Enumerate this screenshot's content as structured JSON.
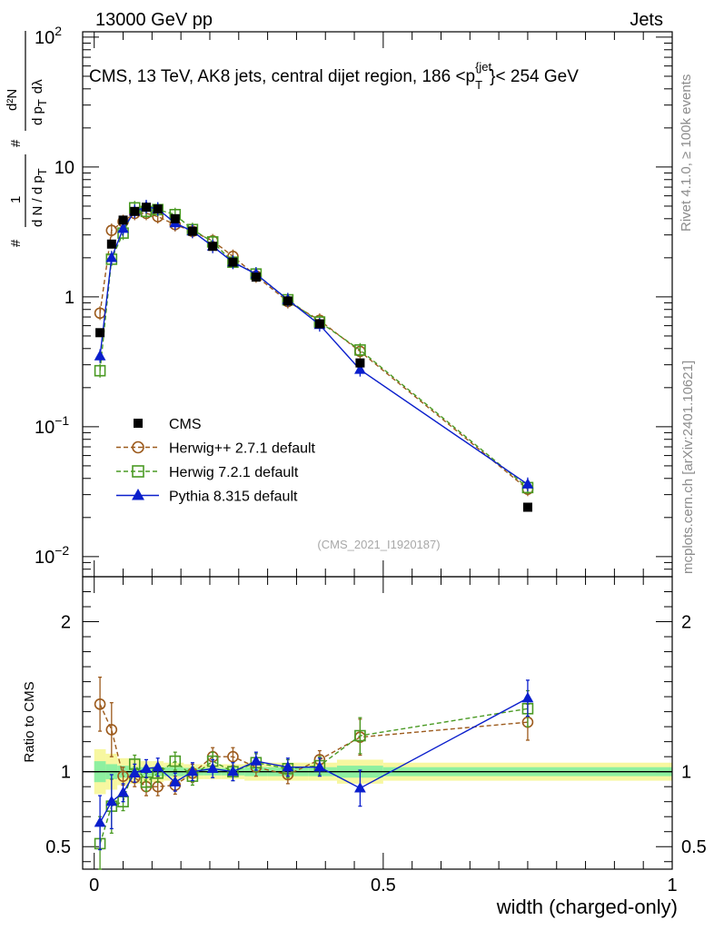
{
  "header": {
    "left": "13000 GeV pp",
    "right": "Jets",
    "side_rivet": "Rivet 4.1.0, ≥ 100k events",
    "side_mcplots": "mcplots.cern.ch [arXiv:2401.10621]",
    "watermark": "(CMS_2021_I1920187)"
  },
  "chart_data": [
    {
      "type": "scatter",
      "panel": "main",
      "title": "CMS, 13 TeV, AK8 jets, central dijet region, 186 <p_T^{jet}< 254 GeV",
      "title_parts": {
        "prefix": "CMS, 13 TeV, AK8 jets, central dijet region, 186 <p",
        "sub": "T",
        "sup": "{jet",
        "suffix": "}< 254 GeV"
      },
      "ylabel_parts": {
        "hash1": "#",
        "num1": "1",
        "den1": "d N / d p",
        "den1_sub": "T",
        "hash2": "#",
        "num2": "d²N",
        "den2": "d p",
        "den2_sub": "T",
        "den2_tail": "dλ"
      },
      "yscale": "log",
      "ylim": [
        0.007,
        110
      ],
      "xlim": [
        -0.02,
        1.0
      ],
      "y_ticks": [
        {
          "value": 100,
          "base": "10",
          "exp": "2"
        },
        {
          "value": 10,
          "base": "10",
          "exp": ""
        },
        {
          "value": 1,
          "base": "1",
          "exp": ""
        },
        {
          "value": 0.1,
          "base": "10",
          "exp": "−1"
        },
        {
          "value": 0.01,
          "base": "10",
          "exp": "−2"
        }
      ],
      "legend_position": "center-left",
      "x": [
        0.01,
        0.03,
        0.05,
        0.07,
        0.09,
        0.11,
        0.14,
        0.17,
        0.205,
        0.24,
        0.28,
        0.335,
        0.39,
        0.46,
        0.75
      ],
      "series": [
        {
          "name": "CMS",
          "marker": "square-filled",
          "color": "#000000",
          "values": [
            0.53,
            2.55,
            3.9,
            4.55,
            4.9,
            4.75,
            4.0,
            3.2,
            2.45,
            1.85,
            1.42,
            0.93,
            0.62,
            0.31,
            0.024
          ]
        },
        {
          "name": "Herwig++ 2.7.1 default",
          "marker": "circle-open",
          "color": "#9c5a1c",
          "values": [
            0.75,
            3.25,
            3.8,
            4.4,
            4.4,
            4.15,
            3.6,
            3.2,
            2.7,
            2.05,
            1.45,
            0.92,
            0.66,
            0.38,
            0.033
          ]
        },
        {
          "name": "Herwig 7.2.1 default",
          "marker": "square-open",
          "color": "#4a9a23",
          "values": [
            0.27,
            1.95,
            3.1,
            4.85,
            4.55,
            4.7,
            4.3,
            3.3,
            2.65,
            1.85,
            1.5,
            0.95,
            0.64,
            0.39,
            0.034
          ]
        },
        {
          "name": "Pythia 8.315 default",
          "marker": "triangle-filled",
          "color": "#0a1ecc",
          "values": [
            0.35,
            2.0,
            3.35,
            4.55,
            4.95,
            4.75,
            3.7,
            3.2,
            2.45,
            1.85,
            1.5,
            0.95,
            0.61,
            0.275,
            0.036
          ]
        }
      ]
    },
    {
      "type": "scatter",
      "panel": "ratio",
      "ylabel": "Ratio to CMS",
      "ylim": [
        0.35,
        2.3
      ],
      "xlim": [
        -0.02,
        1.0
      ],
      "xlabel": "width (charged-only)",
      "x_ticks": [
        {
          "value": 0,
          "label": "0"
        },
        {
          "value": 0.5,
          "label": "0.5"
        },
        {
          "value": 1,
          "label": "1"
        }
      ],
      "y_ticks": [
        {
          "value": 2,
          "label": "2"
        },
        {
          "value": 1,
          "label": "1"
        },
        {
          "value": 0.5,
          "label": "0.5"
        }
      ],
      "band_edges": [
        0.0,
        0.02,
        0.04,
        0.06,
        0.08,
        0.1,
        0.12,
        0.155,
        0.19,
        0.22,
        0.26,
        0.3,
        0.37,
        0.42,
        0.5,
        1.0
      ],
      "band_outer": [
        0.15,
        0.12,
        0.09,
        0.08,
        0.07,
        0.07,
        0.06,
        0.05,
        0.05,
        0.05,
        0.06,
        0.06,
        0.06,
        0.08,
        0.06
      ],
      "band_inner": [
        0.07,
        0.05,
        0.04,
        0.03,
        0.03,
        0.03,
        0.03,
        0.025,
        0.025,
        0.025,
        0.03,
        0.03,
        0.03,
        0.04,
        0.03
      ],
      "x": [
        0.01,
        0.03,
        0.05,
        0.07,
        0.09,
        0.11,
        0.14,
        0.17,
        0.205,
        0.24,
        0.28,
        0.335,
        0.39,
        0.46,
        0.75
      ],
      "series": [
        {
          "name": "Herwig++ 2.7.1 default",
          "marker": "circle-open",
          "color": "#9c5a1c",
          "values": [
            1.45,
            1.28,
            0.97,
            0.96,
            0.9,
            0.9,
            0.91,
            0.99,
            1.1,
            1.1,
            1.03,
            0.98,
            1.08,
            1.23,
            1.33
          ]
        },
        {
          "name": "Herwig 7.2.1 default",
          "marker": "square-open",
          "color": "#4a9a23",
          "values": [
            0.52,
            0.77,
            0.8,
            1.05,
            0.93,
            0.99,
            1.07,
            0.97,
            1.07,
            1.0,
            1.06,
            1.02,
            1.04,
            1.24,
            1.42
          ]
        },
        {
          "name": "Pythia 8.315 default",
          "marker": "triangle-filled",
          "color": "#0a1ecc",
          "values": [
            0.66,
            0.8,
            0.86,
            0.99,
            1.02,
            1.03,
            0.93,
            1.0,
            1.02,
            1.0,
            1.07,
            1.03,
            1.03,
            0.89,
            1.49
          ]
        }
      ]
    }
  ]
}
